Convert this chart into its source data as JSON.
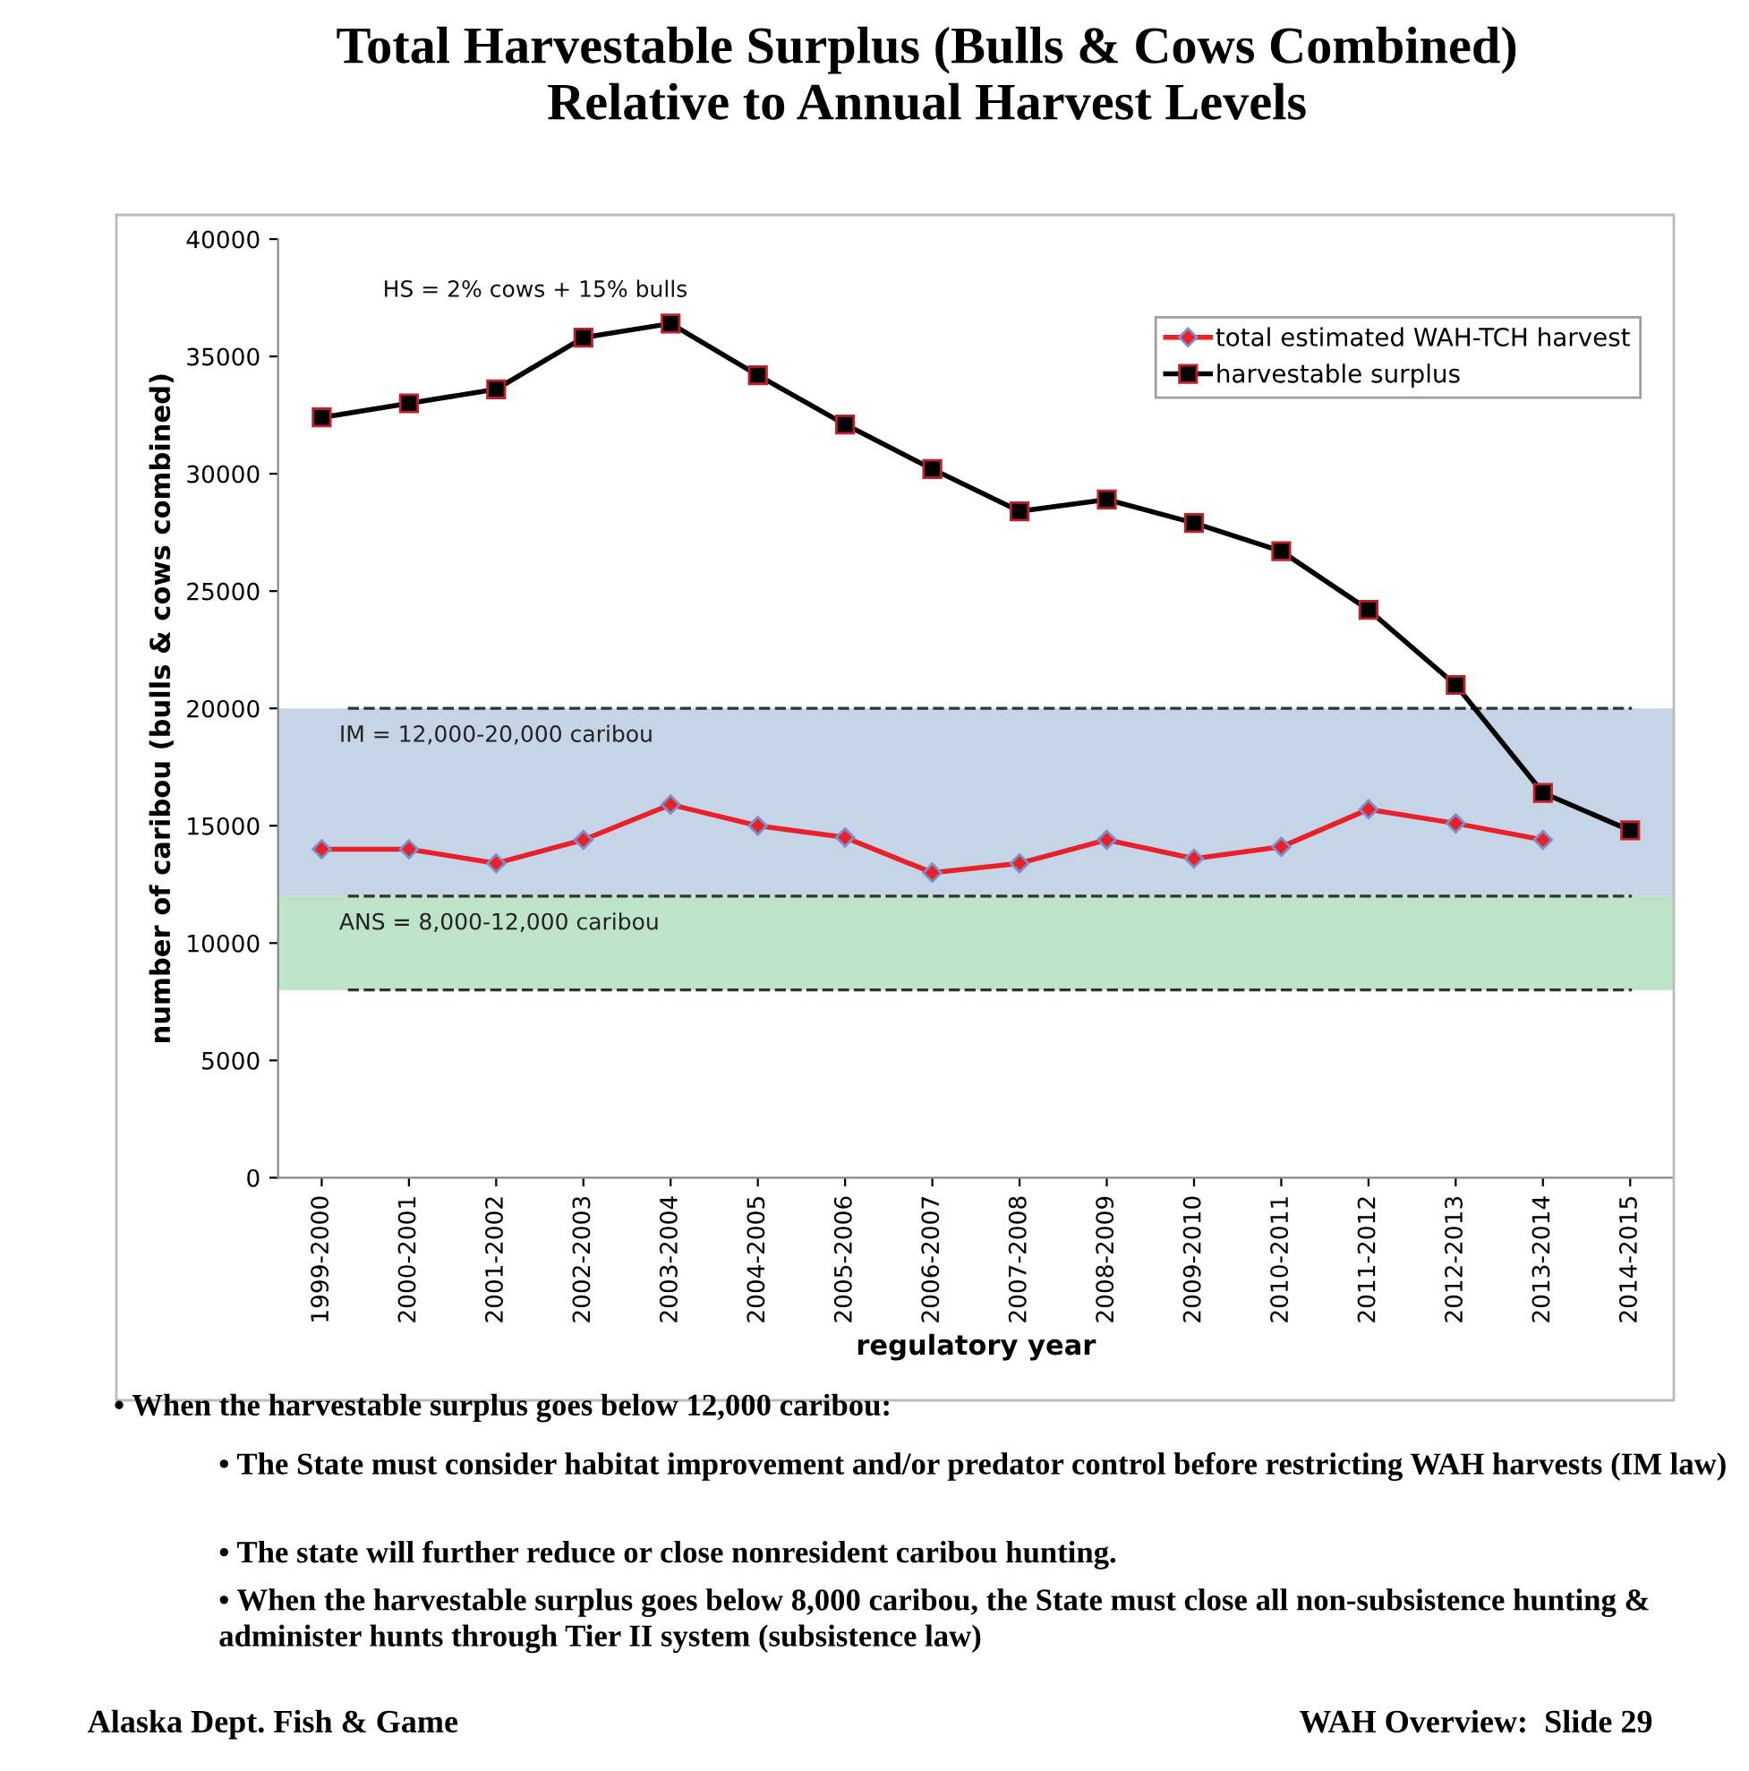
{
  "chart_data": {
    "type": "line",
    "title": "Total Harvestable Surplus (Bulls & Cows Combined)\nRelative to Annual Harvest Levels",
    "xlabel": "regulatory year",
    "ylabel": "number of caribou (bulls & cows combined)",
    "categories": [
      "1999-2000",
      "2000-2001",
      "2001-2002",
      "2002-2003",
      "2003-2004",
      "2004-2005",
      "2005-2006",
      "2006-2007",
      "2007-2008",
      "2008-2009",
      "2009-2010",
      "2010-2011",
      "2011-2012",
      "2012-2013",
      "2013-2014",
      "2014-2015"
    ],
    "series": [
      {
        "name": "total estimated WAH-TCH harvest",
        "color": "#e8202a",
        "marker": "diamond",
        "values": [
          14000,
          14000,
          13400,
          14400,
          15900,
          15000,
          14500,
          13000,
          13400,
          14400,
          13600,
          14100,
          15700,
          15100,
          14400,
          null
        ]
      },
      {
        "name": "harvestable surplus",
        "color": "#000000",
        "marker": "square",
        "values": [
          32400,
          33000,
          33600,
          35800,
          36400,
          34200,
          32100,
          30200,
          28400,
          28900,
          27900,
          26700,
          24200,
          21000,
          16400,
          14800
        ]
      }
    ],
    "ylim": [
      0,
      40000
    ],
    "yticks": [
      0,
      5000,
      10000,
      15000,
      20000,
      25000,
      30000,
      35000,
      40000
    ],
    "bands": [
      {
        "axis": "y",
        "from": 12000,
        "to": 20000,
        "label": "IM = 12,000-20,000 caribou",
        "color": "#c6d4e7"
      },
      {
        "axis": "y",
        "from": 8000,
        "to": 12000,
        "label": "ANS = 8,000-12,000 caribou",
        "color": "#bde3c8"
      }
    ],
    "ref_lines": [
      {
        "axis": "y",
        "value": 20000,
        "color": "#333333",
        "line_style": "dashed"
      },
      {
        "axis": "y",
        "value": 12000,
        "color": "#333333",
        "line_style": "dashed"
      },
      {
        "axis": "y",
        "value": 8000,
        "color": "#333333",
        "line_style": "dashed"
      }
    ],
    "annotations": [
      "HS = 2% cows + 15% bulls",
      "• When the harvestable surplus goes below 12,000 caribou:",
      "• The State must consider habitat improvement and/or predator control before restricting WAH harvests (IM law)",
      "• The state will further reduce or close nonresident caribou hunting.",
      "• When the harvestable surplus goes below 8,000 caribou, the State must close all non-subsistence hunting & administer hunts through Tier II system (subsistence law)",
      "Alaska Dept. Fish & Game",
      "WAH Overview:  Slide 29"
    ],
    "legend": "top right",
    "grid": false,
    "line_style": "solid"
  }
}
